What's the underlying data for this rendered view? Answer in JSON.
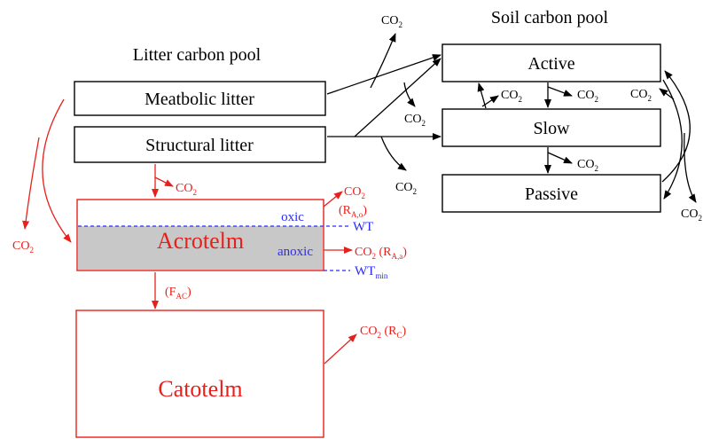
{
  "litter_pool": {
    "title": "Litter carbon pool",
    "metabolic": "Meatbolic litter",
    "structural": "Structural litter"
  },
  "soil_pool": {
    "title": "Soil carbon pool",
    "pools": [
      "Active",
      "Slow",
      "Passive"
    ]
  },
  "peat": {
    "acrotelm": "Acrotelm",
    "catotelm": "Catotelm",
    "oxic": "oxic",
    "anoxic": "anoxic",
    "wt": "WT",
    "wt_min": [
      "WT",
      "min"
    ]
  },
  "fluxes": [
    [
      "CO",
      "2"
    ],
    [
      "CO",
      "2"
    ],
    [
      "CO",
      "2"
    ],
    [
      "CO",
      "2"
    ],
    [
      "CO",
      "2"
    ],
    [
      "CO",
      "2"
    ],
    [
      "CO",
      "2"
    ],
    [
      "CO",
      "2"
    ],
    [
      "CO",
      "2"
    ],
    [
      "CO",
      "2"
    ],
    [
      "CO",
      "2"
    ],
    [
      "(R",
      "A,o",
      ")"
    ],
    [
      "CO",
      "2",
      " (R",
      "A,a",
      ")"
    ],
    [
      "(F",
      "AC",
      ")"
    ],
    [
      "CO",
      "2",
      " (R",
      "C",
      ")"
    ]
  ]
}
